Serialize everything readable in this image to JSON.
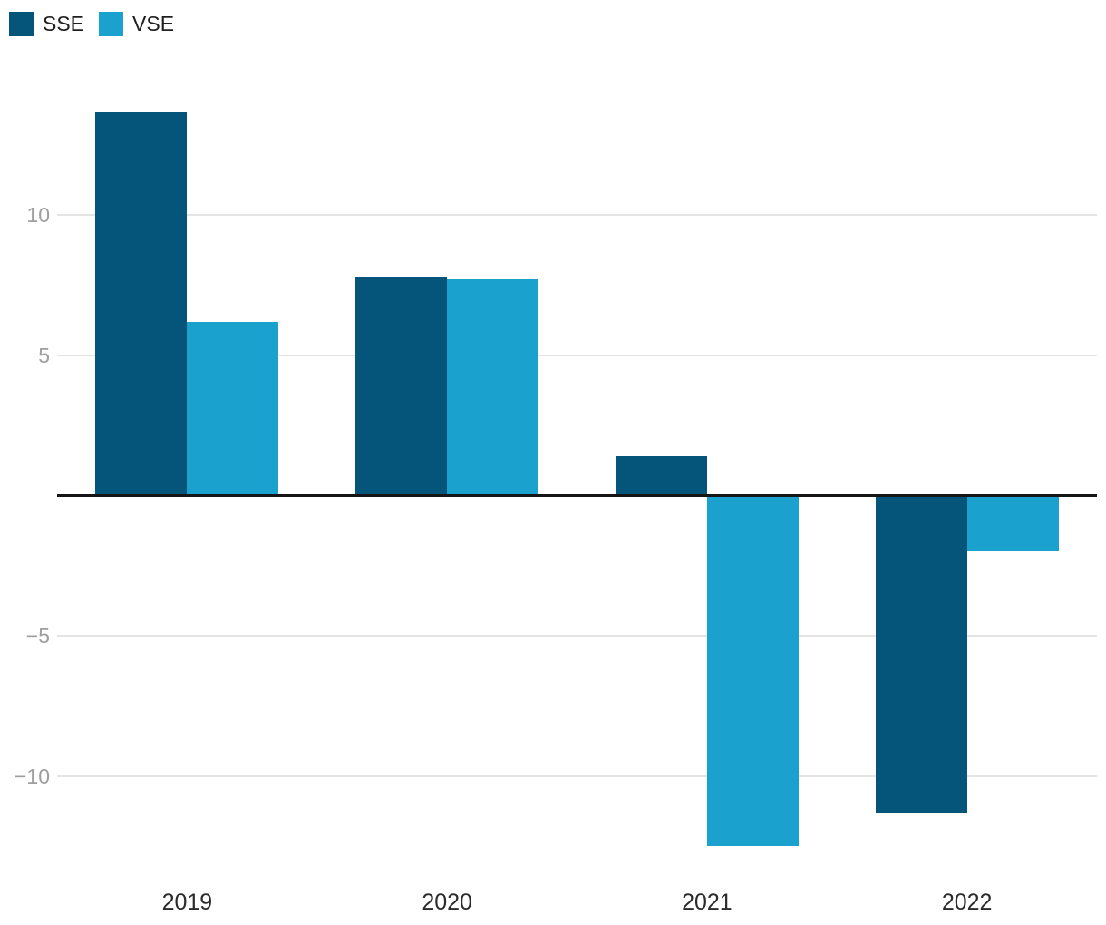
{
  "legend": {
    "items": [
      {
        "label": "SSE",
        "color": "#05557A"
      },
      {
        "label": "VSE",
        "color": "#1BA1CE"
      }
    ]
  },
  "chart_data": {
    "type": "bar",
    "title": "",
    "xlabel": "",
    "ylabel": "",
    "categories": [
      "2019",
      "2020",
      "2021",
      "2022"
    ],
    "series": [
      {
        "name": "SSE",
        "color": "#05557A",
        "values": [
          13.7,
          7.8,
          1.4,
          -11.3
        ]
      },
      {
        "name": "VSE",
        "color": "#1BA1CE",
        "values": [
          6.2,
          7.7,
          -12.5,
          -2.0
        ]
      }
    ],
    "y_axis": {
      "ticks": [
        {
          "value": 10,
          "label": "10"
        },
        {
          "value": 5,
          "label": "5"
        },
        {
          "value": -5,
          "label": "−5"
        },
        {
          "value": -10,
          "label": "−10"
        }
      ],
      "baseline_value": 0,
      "range": [
        -13.2,
        14.4
      ]
    },
    "grid": true,
    "legend_position": "top-left",
    "colors": {
      "gridline": "#e4e4e4",
      "baseline": "#161616",
      "tick_label": "#9e9e9e",
      "category_label": "#2b2b2b"
    }
  }
}
